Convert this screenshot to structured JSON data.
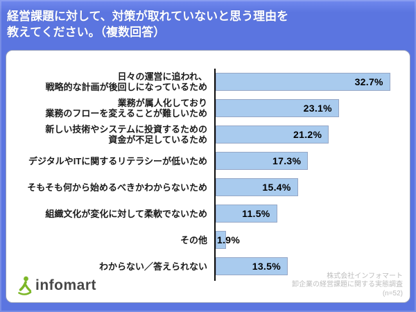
{
  "header": {
    "title_line1": "経営課題に対して、対策が取れていないと思う理由を",
    "title_line2": "教えてください。（複数回答）"
  },
  "chart_data": {
    "type": "bar",
    "orientation": "horizontal",
    "title": "経営課題に対して、対策が取れていないと思う理由を教えてください。（複数回答）",
    "unit": "%",
    "xlim": [
      0,
      35
    ],
    "grid": false,
    "legend": "none",
    "bar_color": "#a9cbee",
    "categories": [
      "日々の運営に追われ、戦略的な計画が後回しになっているため",
      "業務が属人化しており業務のフローを変えることが難しいため",
      "新しい技術やシステムに投資するための資金が不足しているため",
      "デジタルやITに関するリテラシーが低いため",
      "そもそも何から始めるべきかわからないため",
      "組織文化が変化に対して柔軟でないため",
      "その他",
      "わからない／答えられない"
    ],
    "category_lines": [
      [
        "日々の運営に追われ、",
        "戦略的な計画が後回しになっているため"
      ],
      [
        "業務が属人化しており",
        "業務のフローを変えることが難しいため"
      ],
      [
        "新しい技術やシステムに投資するための",
        "資金が不足しているため"
      ],
      [
        "デジタルやITに関するリテラシーが低いため"
      ],
      [
        "そもそも何から始めるべきかわからないため"
      ],
      [
        "組織文化が変化に対して柔軟でないため"
      ],
      [
        "その他"
      ],
      [
        "わからない／答えられない"
      ]
    ],
    "values": [
      32.7,
      23.1,
      21.2,
      17.3,
      15.4,
      11.5,
      1.9,
      13.5
    ],
    "value_labels": [
      "32.7%",
      "23.1%",
      "21.2%",
      "17.3%",
      "15.4%",
      "11.5%",
      "1.9%",
      "13.5%"
    ]
  },
  "footer": {
    "logo_text": "infomart",
    "source_line1": "株式会社インフォマート",
    "source_line2": "卸企業の経営課題に関する実態調査",
    "source_line3": "(n=52)"
  },
  "colors": {
    "background": "#5b75e0",
    "panel": "#ffffff",
    "bar_fill": "#a9cbee",
    "bar_border": "#96a7c6",
    "axis": "#0a0a0a",
    "title_text": "#ffffff",
    "label_text": "#1a1a1a",
    "source_text": "#bdbdbd",
    "logo_green": "#7cb728",
    "logo_text": "#474747"
  }
}
